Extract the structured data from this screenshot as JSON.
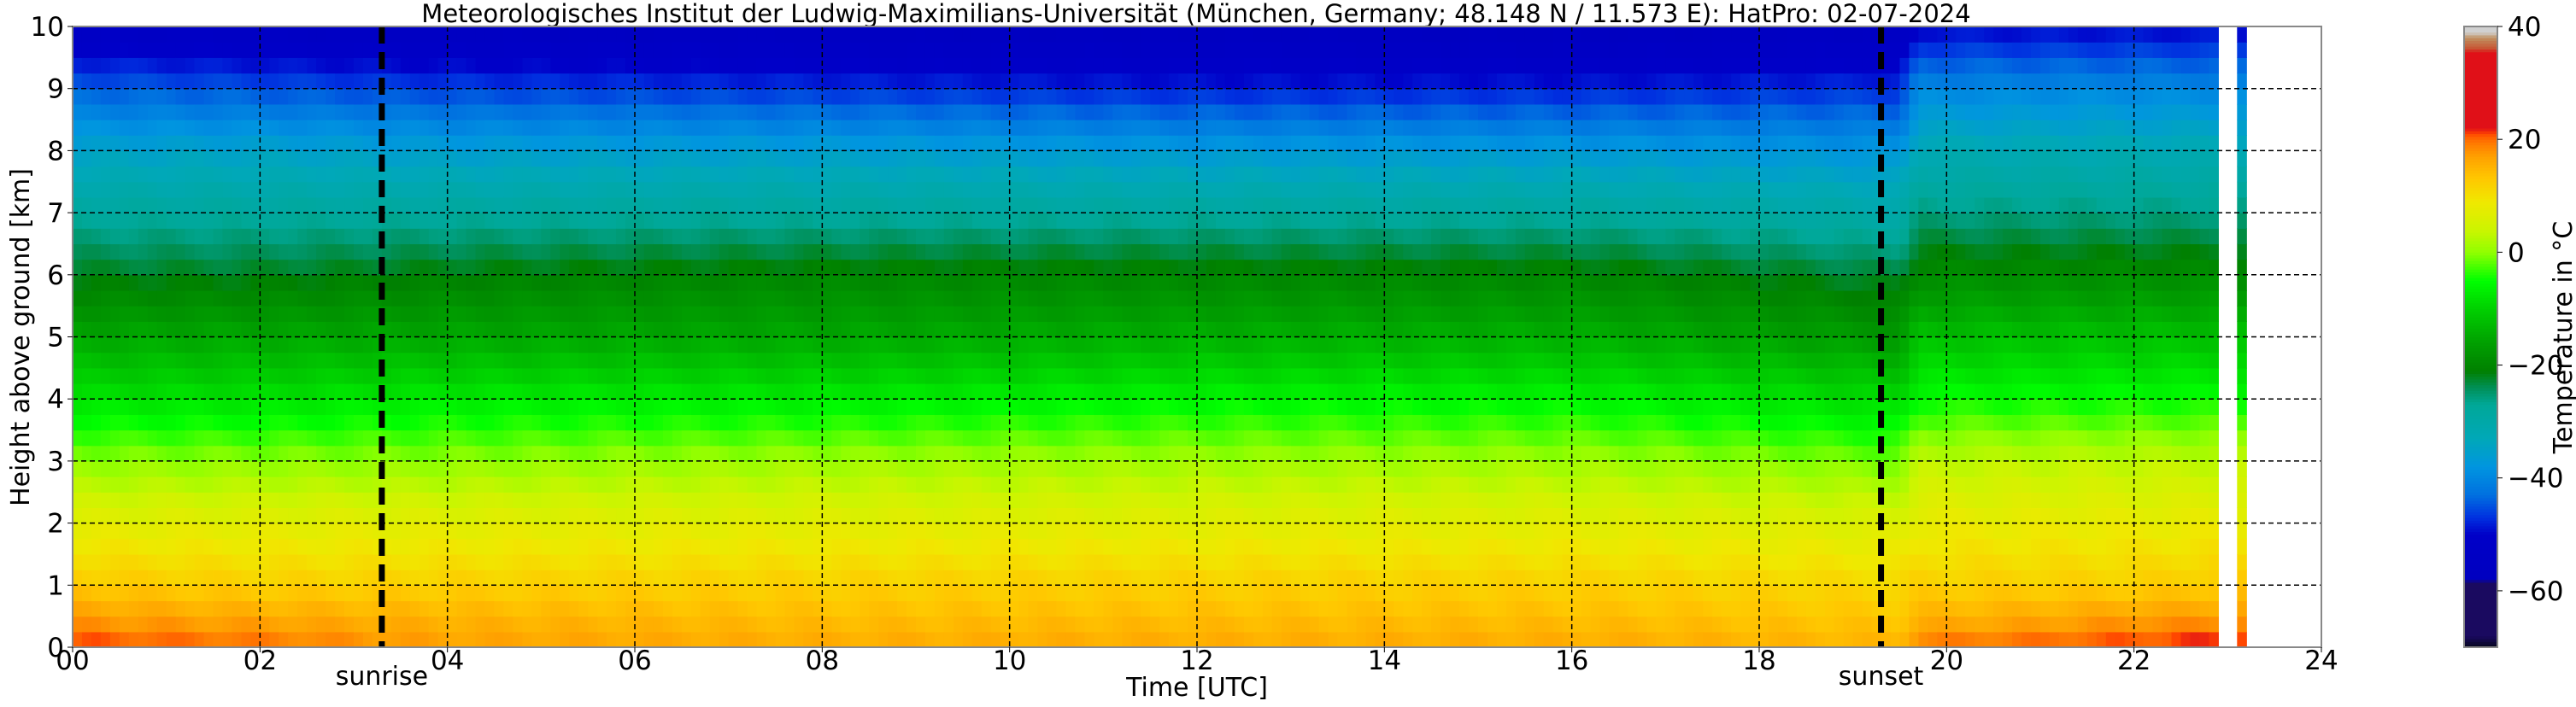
{
  "chart_data": {
    "type": "heatmap",
    "title": "Meteorologisches Institut der Ludwig-Maximilians-Universität (München, Germany; 48.148 N / 11.573 E):    HatPro: 02-07-2024",
    "xlabel": "Time [UTC]",
    "ylabel": "Height above ground [km]",
    "xlim": [
      0,
      24
    ],
    "ylim": [
      0,
      10
    ],
    "xticks": [
      "00",
      "02",
      "04",
      "06",
      "08",
      "10",
      "12",
      "14",
      "16",
      "18",
      "20",
      "22",
      "24"
    ],
    "yticks": [
      "0",
      "1",
      "2",
      "3",
      "4",
      "5",
      "6",
      "7",
      "8",
      "9",
      "10"
    ],
    "grid": true,
    "colorbar": {
      "label": "Temperature in $^\\circ$C",
      "label_text": "Temperature in °C",
      "range": [
        -70,
        40
      ],
      "ticks": [
        "40",
        "20",
        "0",
        "−20",
        "−40",
        "−60"
      ],
      "colors": [
        [
          -70,
          "#05051a"
        ],
        [
          -68,
          "#1a0a60"
        ],
        [
          -58.5,
          "#1a0a60"
        ],
        [
          -58,
          "#0000c0"
        ],
        [
          -50,
          "#0000c8"
        ],
        [
          -47,
          "#0030e0"
        ],
        [
          -43,
          "#0070e0"
        ],
        [
          -38,
          "#0095e0"
        ],
        [
          -33,
          "#00a8b8"
        ],
        [
          -27,
          "#00a898"
        ],
        [
          -24,
          "#009058"
        ],
        [
          -21,
          "#008000"
        ],
        [
          -16,
          "#00a000"
        ],
        [
          -10,
          "#00d000"
        ],
        [
          -5,
          "#00ff00"
        ],
        [
          0,
          "#90ff00"
        ],
        [
          4,
          "#ccf500"
        ],
        [
          9,
          "#f0e800"
        ],
        [
          13,
          "#ffc800"
        ],
        [
          17,
          "#ffa000"
        ],
        [
          19,
          "#ff8000"
        ],
        [
          20.5,
          "#ff6000"
        ],
        [
          21,
          "#ff4400"
        ],
        [
          22,
          "#e01018"
        ],
        [
          35.5,
          "#e01018"
        ],
        [
          36,
          "#c85030"
        ],
        [
          38,
          "#c09060"
        ],
        [
          39,
          "#d0d0d0"
        ],
        [
          40,
          "#d0d0d0"
        ]
      ]
    },
    "annotations": [
      {
        "label": "sunrise",
        "x": 3.3
      },
      {
        "label": "sunset",
        "x": 19.3
      }
    ],
    "data_gap": [
      23.0,
      23.07
    ],
    "data_end": 23.2,
    "heights_km": [
      0,
      0.25,
      0.5,
      1,
      2,
      3,
      4,
      5,
      6,
      7,
      8,
      9,
      10
    ],
    "times_utc": [
      0,
      2,
      4,
      8,
      12,
      16,
      19.5,
      19.7,
      21,
      22,
      23.2
    ],
    "temperature_c": [
      [
        22,
        19,
        17,
        13,
        7,
        0,
        -8,
        -15,
        -22,
        -28,
        -35,
        -44,
        -54
      ],
      [
        20,
        18,
        16,
        12,
        7,
        0,
        -8,
        -15,
        -22,
        -28,
        -35,
        -45,
        -55
      ],
      [
        17,
        16,
        15,
        12,
        7,
        0,
        -7,
        -15,
        -21,
        -28,
        -36,
        -46,
        -56
      ],
      [
        16,
        15,
        14,
        12,
        7,
        1,
        -7,
        -15,
        -20,
        -28,
        -36,
        -47,
        -57
      ],
      [
        16,
        15,
        14,
        12,
        7,
        1,
        -6,
        -14,
        -20,
        -28,
        -37,
        -48,
        -58
      ],
      [
        16,
        15,
        14,
        12,
        7,
        1,
        -6,
        -14,
        -20,
        -28,
        -37,
        -48,
        -58
      ],
      [
        15,
        14,
        13,
        11,
        6,
        -1,
        -9,
        -17,
        -23,
        -30,
        -38,
        -47,
        -56
      ],
      [
        20,
        17,
        15,
        12,
        8,
        3,
        -5,
        -12,
        -19,
        -26,
        -32,
        -40,
        -50
      ],
      [
        21,
        18,
        16,
        12,
        8,
        3,
        -5,
        -12,
        -19,
        -26,
        -32,
        -40,
        -50
      ],
      [
        22,
        19,
        17,
        12,
        8,
        3,
        -5,
        -12,
        -19,
        -26,
        -32,
        -40,
        -50
      ],
      [
        23,
        20,
        17,
        13,
        8,
        3,
        -5,
        -12,
        -19,
        -26,
        -32,
        -40,
        -50
      ]
    ]
  }
}
